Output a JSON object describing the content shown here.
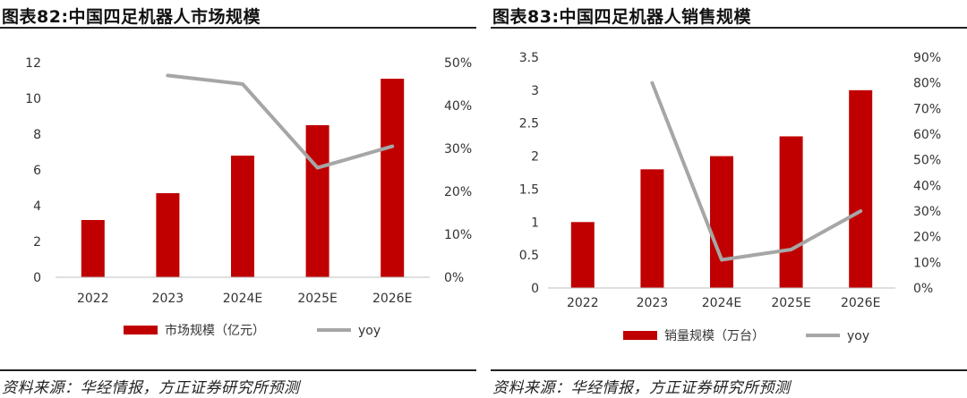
{
  "panels": [
    {
      "title": "图表82:中国四足机器人市场规模",
      "source": "资料来源：华经情报，方正证券研究所预测"
    },
    {
      "title": "图表83:中国四足机器人销售规模",
      "source": "资料来源：华经情报，方正证券研究所预测"
    }
  ],
  "chart_data": [
    {
      "type": "bar",
      "categories": [
        "2022",
        "2023",
        "2024E",
        "2025E",
        "2026E"
      ],
      "series": [
        {
          "name": "市场规模（亿元）",
          "type": "bar",
          "axis": "left",
          "values": [
            3.2,
            4.7,
            6.8,
            8.5,
            11.1
          ],
          "color": "#c00000"
        },
        {
          "name": "yoy",
          "type": "line",
          "axis": "right",
          "values": [
            null,
            0.47,
            0.45,
            0.255,
            0.305
          ],
          "color": "#a6a6a6"
        }
      ],
      "y_left": {
        "min": 0,
        "max": 12,
        "ticks": [
          "0",
          "2",
          "4",
          "6",
          "8",
          "10",
          "12"
        ]
      },
      "y_right": {
        "min": 0,
        "max": 0.5,
        "ticks": [
          "0%",
          "10%",
          "20%",
          "30%",
          "40%",
          "50%"
        ]
      },
      "legend_position": "bottom",
      "grid": false
    },
    {
      "type": "bar",
      "categories": [
        "2022",
        "2023",
        "2024E",
        "2025E",
        "2026E"
      ],
      "series": [
        {
          "name": "销量规模（万台）",
          "type": "bar",
          "axis": "left",
          "values": [
            1.0,
            1.8,
            2.0,
            2.3,
            3.0
          ],
          "color": "#c00000"
        },
        {
          "name": "yoy",
          "type": "line",
          "axis": "right",
          "values": [
            null,
            0.8,
            0.11,
            0.15,
            0.3
          ],
          "color": "#a6a6a6"
        }
      ],
      "y_left": {
        "min": 0,
        "max": 3.5,
        "ticks": [
          "0",
          "0.5",
          "1",
          "1.5",
          "2",
          "2.5",
          "3",
          "3.5"
        ]
      },
      "y_right": {
        "min": 0,
        "max": 0.9,
        "ticks": [
          "0%",
          "10%",
          "20%",
          "30%",
          "40%",
          "50%",
          "60%",
          "70%",
          "80%",
          "90%"
        ]
      },
      "legend_position": "bottom",
      "grid": false
    }
  ]
}
